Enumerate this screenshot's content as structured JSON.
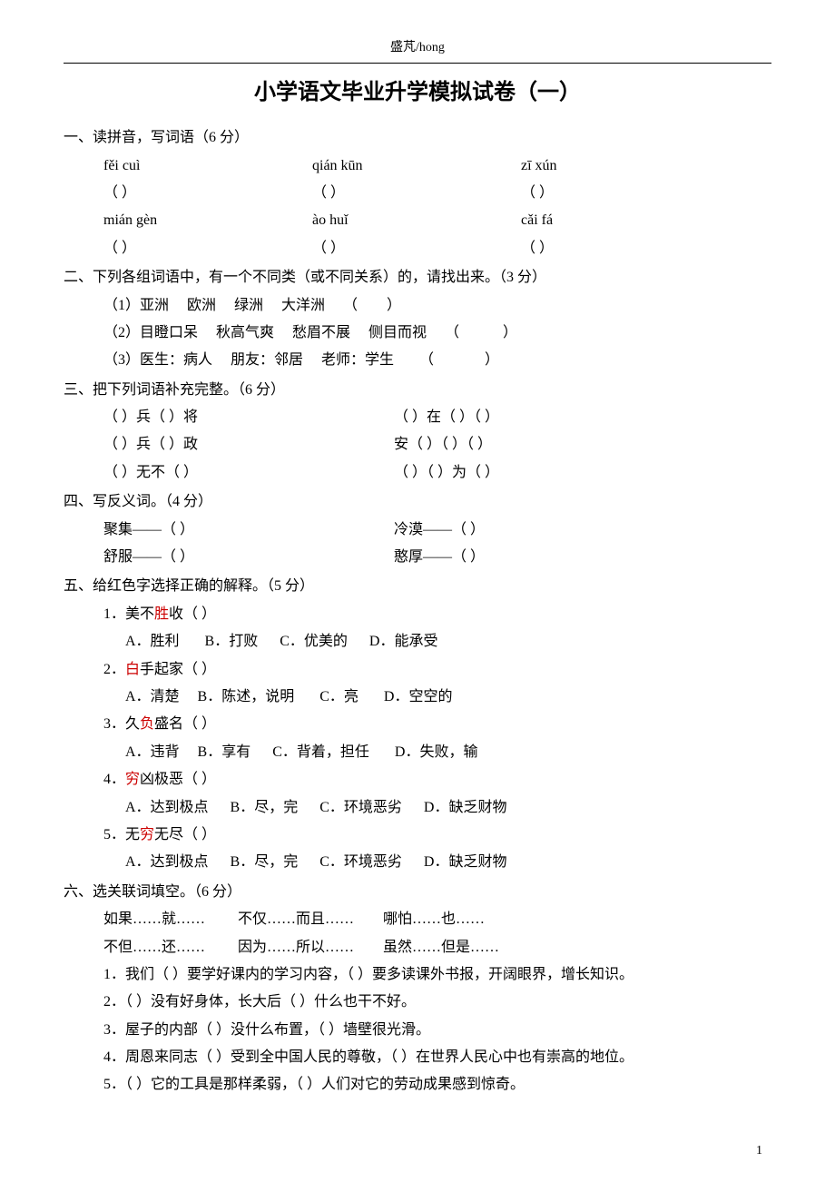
{
  "header": "盛芃/hong",
  "title": "小学语文毕业升学模拟试卷（一）",
  "pageNumber": "1",
  "section1": {
    "heading": "一、读拼音，写词语（6 分）",
    "row1": {
      "a": "fěi cuì",
      "b": "qián kūn",
      "c": "zī xún"
    },
    "row2": {
      "a": "mián gèn",
      "b": "ào  huǐ",
      "c": "cǎi fá"
    },
    "paren": {
      "a": "（          ）",
      "b": "（          ）",
      "c": "（          ）"
    }
  },
  "section2": {
    "heading": "二、下列各组词语中，有一个不同类（或不同关系）的，请找出来。（3 分）",
    "line1": "（1）亚洲     欧洲     绿洲     大洋洲     （        ）",
    "line2": "（2）目瞪口呆     秋高气爽     愁眉不展     侧目而视     （            ）",
    "line3": "（3）医生：病人     朋友：邻居     老师：学生       （              ）"
  },
  "section3": {
    "heading": "三、把下列词语补充完整。（6 分）",
    "r1l": "（      ）兵（        ）将",
    "r1r": "（      ）在（      ）（          ）",
    "r2l": "（      ）兵（        ）政",
    "r2r": "安（      ）（      ）（      ）",
    "r3l": "（      ）无不（      ）",
    "r3r": "（      ）（      ）为（      ）"
  },
  "section4": {
    "heading": "四、写反义词。（4 分）",
    "r1l": "聚集——（          ）",
    "r1r": "冷漠——（         ）",
    "r2l": "舒服——（          ）",
    "r2r": "憨厚——（         ）"
  },
  "section5": {
    "heading": "五、给红色字选择正确的解释。（5 分）",
    "q1": {
      "pre": "1．美不",
      "red": "胜",
      "post": "收（     ）",
      "opts": "A．胜利       B．打败      C．优美的      D．能承受"
    },
    "q2": {
      "pre": "2．",
      "red": "白",
      "post": "手起家（     ）",
      "opts": "A．清楚     B．陈述，说明       C．亮       D．空空的"
    },
    "q3": {
      "pre": "3．久",
      "red": "负",
      "post": "盛名（     ）",
      "opts": "A．违背     B．享有      C．背着，担任       D．失败，输"
    },
    "q4": {
      "pre": "4．",
      "red": "穷",
      "post": "凶极恶（     ）",
      "opts": "A．达到极点      B．尽，完      C．环境恶劣      D．缺乏财物"
    },
    "q5": {
      "pre": "5．无",
      "red": "穷",
      "post": "无尽（     ）",
      "opts": "A．达到极点      B．尽，完      C．环境恶劣      D．缺乏财物"
    }
  },
  "section6": {
    "heading": "六、选关联词填空。（6 分）",
    "bank1": "如果……就……         不仅……而且……        哪怕……也……",
    "bank2": "不但……还……         因为……所以……        虽然……但是……",
    "l1": "1．我们（      ）要学好课内的学习内容，（      ）要多读课外书报，开阔眼界，增长知识。",
    "l2": "2．（        ）没有好身体，长大后（        ）什么也干不好。",
    "l3": "3．屋子的内部（       ）没什么布置，（       ）墙壁很光滑。",
    "l4": "4．周恩来同志（       ）受到全中国人民的尊敬，（      ）在世界人民心中也有崇高的地位。",
    "l5": "5．（        ）它的工具是那样柔弱，（        ）人们对它的劳动成果感到惊奇。"
  }
}
